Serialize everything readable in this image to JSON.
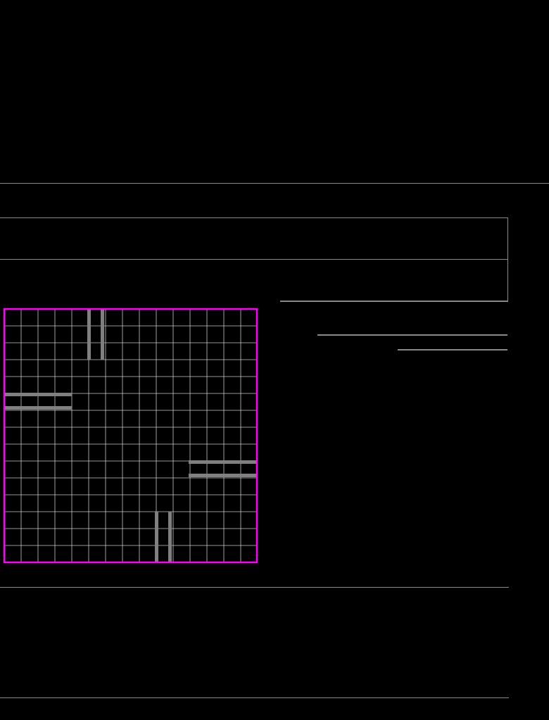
{
  "colors": {
    "background": "#000000",
    "border": "#ff00ff",
    "grid_line": "#c8c8c8",
    "bar": "#808080",
    "divider": "#8a8a8a"
  },
  "grid": {
    "cells": 15
  }
}
